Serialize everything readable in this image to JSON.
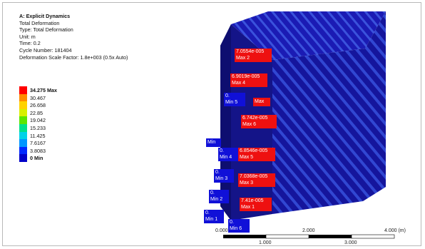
{
  "info": {
    "title": "A: Explicit Dynamics",
    "lines": [
      "Total Deformation",
      "Type: Total Deformation",
      "Unit: m",
      "Time: 0.2",
      "Cycle Number: 181404",
      "Deformation Scale Factor: 1.8e+003 (0.5x Auto)"
    ]
  },
  "legend": {
    "max_label": "34.275 Max",
    "min_label": "0 Min",
    "values": [
      "30.467",
      "26.658",
      "22.85",
      "19.042",
      "15.233",
      "11.425",
      "7.6167",
      "3.8083"
    ],
    "colors": [
      "#ff0000",
      "#ff8c00",
      "#ffd200",
      "#d8f000",
      "#5ce600",
      "#00e08a",
      "#00d2e8",
      "#0096ff",
      "#0028ff",
      "#0000c8"
    ]
  },
  "labels": {
    "max2": {
      "value": "7.0554e-005",
      "tag": "Max 2"
    },
    "max4": {
      "value": "6.9019e-005",
      "tag": "Max 4"
    },
    "min5": {
      "value": "0.",
      "tag": "Min 5"
    },
    "max": {
      "tag": "Max"
    },
    "max6": {
      "value": "6.742e-005",
      "tag": "Max 6"
    },
    "min": {
      "tag": "Min"
    },
    "min4": {
      "value": "0.",
      "tag": "Min 4"
    },
    "max5": {
      "value": "6.8546e-005",
      "tag": "Max 5"
    },
    "min3": {
      "value": "0.",
      "tag": "Min 3"
    },
    "max3": {
      "value": "7.0368e-005",
      "tag": "Max 3"
    },
    "min2": {
      "value": "0.",
      "tag": "Min 2"
    },
    "max1": {
      "value": "7.41e-005",
      "tag": "Max 1"
    },
    "min1": {
      "value": "0.",
      "tag": "Min 1"
    },
    "min6": {
      "value": "0.",
      "tag": "Min 6"
    }
  },
  "scale": {
    "t0": "0.000",
    "t1": "1.000",
    "t2": "2.000",
    "t3": "3.000",
    "t4": "4.000 (m)"
  },
  "colors": {
    "model_front": "#1a1aa8",
    "model_side": "#16169a",
    "model_top": "#1c1cc0",
    "stripe": "#3a4fd8",
    "label_red": "#ee1010",
    "label_blue": "#1010d8"
  }
}
